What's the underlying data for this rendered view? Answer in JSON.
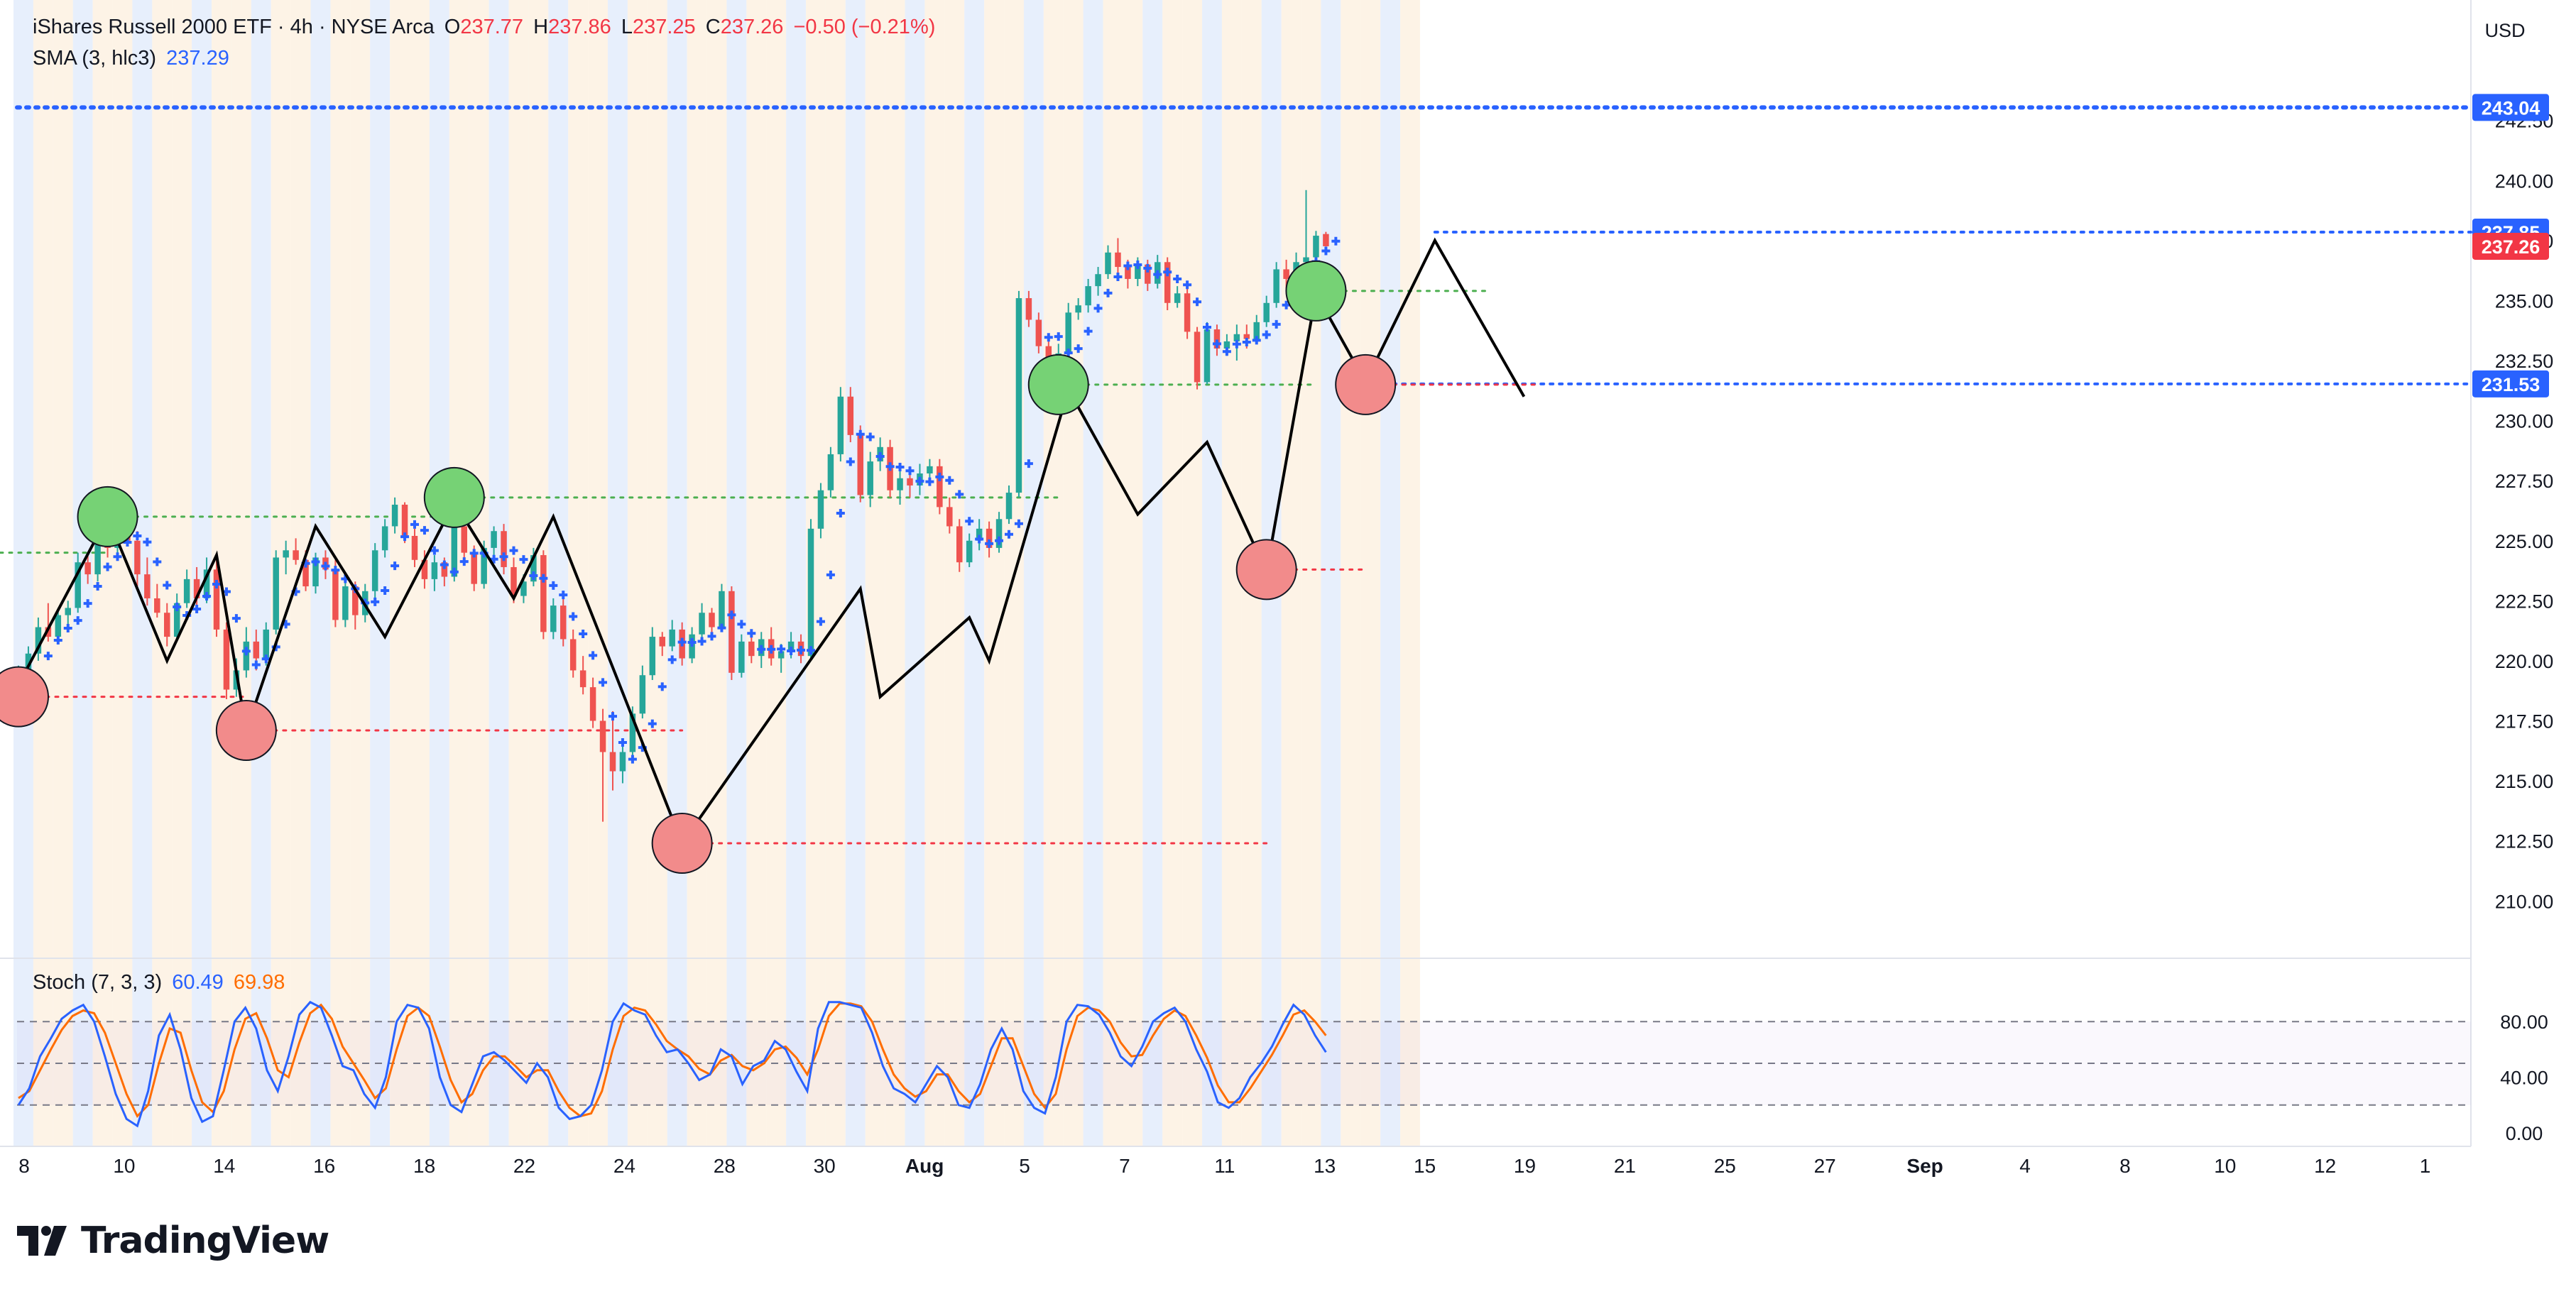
{
  "header": {
    "symbol": "iShares Russell 2000 ETF · 4h · NYSE Arca",
    "o_label": "O",
    "o_value": "237.77",
    "h_label": "H",
    "h_value": "237.86",
    "l_label": "L",
    "l_value": "237.25",
    "c_label": "C",
    "c_value": "237.26",
    "change": "−0.50 (−0.21%)",
    "sma_label": "SMA (3, hlc3)",
    "sma_value": "237.29",
    "stoch_label": "Stoch (7, 3, 3)",
    "stoch_k": "60.49",
    "stoch_d": "69.98"
  },
  "currency": "USD",
  "brand": "TradingView",
  "colors": {
    "up": "#26a69a",
    "down": "#ef5350",
    "sma": "#2962ff",
    "stoch_k": "#2962ff",
    "stoch_d": "#ff6d00",
    "pivot_high": "#76d275",
    "pivot_low": "#f28b8b",
    "badge_blue": "#2962ff",
    "badge_red": "#f23645"
  },
  "chart_data": {
    "type": "candlestick",
    "title": "iShares Russell 2000 ETF · 4h · NYSE Arca",
    "price_axis": {
      "ticks": [
        "210.00",
        "212.50",
        "215.00",
        "217.50",
        "220.00",
        "222.50",
        "225.00",
        "227.50",
        "230.00",
        "232.50",
        "235.00",
        "237.50",
        "240.00",
        "242.50"
      ],
      "ylim": [
        208.5,
        244.5
      ]
    },
    "price_badges": [
      {
        "value": "243.04",
        "color": "blue"
      },
      {
        "value": "237.85",
        "color": "blue"
      },
      {
        "value": "237.26",
        "color": "red"
      },
      {
        "value": "231.53",
        "color": "blue"
      }
    ],
    "x_axis": {
      "labels": [
        "8",
        "10",
        "14",
        "16",
        "18",
        "22",
        "24",
        "28",
        "30",
        "Aug",
        "5",
        "7",
        "11",
        "13",
        "15",
        "19",
        "21",
        "25",
        "27",
        "Sep",
        "4",
        "8",
        "10",
        "12",
        "1"
      ]
    },
    "candles": [
      [
        219.4,
        219.8,
        218.9,
        219.6
      ],
      [
        219.6,
        220.6,
        219.4,
        220.3
      ],
      [
        220.3,
        221.8,
        220.0,
        221.4
      ],
      [
        221.4,
        222.4,
        220.8,
        221.0
      ],
      [
        221.0,
        222.2,
        220.7,
        221.9
      ],
      [
        221.9,
        222.5,
        221.4,
        222.2
      ],
      [
        222.2,
        224.5,
        222.0,
        224.1
      ],
      [
        224.1,
        224.4,
        223.2,
        223.6
      ],
      [
        223.6,
        225.2,
        223.3,
        224.9
      ],
      [
        224.9,
        225.4,
        224.3,
        224.7
      ],
      [
        224.7,
        226.3,
        224.4,
        225.9
      ],
      [
        225.9,
        226.0,
        224.8,
        225.0
      ],
      [
        225.0,
        225.4,
        223.1,
        223.6
      ],
      [
        223.6,
        224.3,
        222.3,
        222.6
      ],
      [
        222.6,
        223.2,
        221.8,
        222.0
      ],
      [
        222.0,
        222.4,
        220.6,
        221.0
      ],
      [
        221.0,
        222.8,
        220.8,
        222.4
      ],
      [
        222.4,
        223.8,
        222.2,
        223.4
      ],
      [
        223.4,
        223.9,
        222.3,
        222.6
      ],
      [
        222.6,
        224.3,
        222.4,
        223.8
      ],
      [
        223.8,
        224.3,
        221.0,
        221.3
      ],
      [
        221.3,
        221.6,
        218.4,
        218.8
      ],
      [
        218.8,
        220.1,
        218.5,
        219.6
      ],
      [
        219.6,
        221.4,
        219.3,
        220.8
      ],
      [
        220.8,
        221.3,
        219.6,
        220.1
      ],
      [
        220.1,
        221.6,
        219.8,
        221.3
      ],
      [
        221.3,
        224.6,
        221.1,
        224.3
      ],
      [
        224.3,
        225.0,
        223.6,
        224.6
      ],
      [
        224.6,
        225.1,
        224.0,
        224.2
      ],
      [
        224.2,
        224.6,
        222.9,
        223.1
      ],
      [
        223.1,
        224.5,
        222.8,
        224.3
      ],
      [
        224.3,
        224.6,
        223.4,
        223.8
      ],
      [
        223.8,
        224.2,
        221.4,
        221.7
      ],
      [
        221.7,
        223.4,
        221.4,
        223.1
      ],
      [
        223.1,
        223.3,
        221.3,
        221.9
      ],
      [
        221.9,
        223.2,
        221.6,
        222.9
      ],
      [
        222.9,
        224.9,
        222.6,
        224.6
      ],
      [
        224.6,
        225.9,
        224.3,
        225.6
      ],
      [
        225.6,
        226.8,
        225.3,
        226.5
      ],
      [
        226.5,
        226.6,
        224.9,
        225.2
      ],
      [
        225.2,
        225.5,
        223.9,
        224.2
      ],
      [
        224.2,
        224.6,
        223.0,
        223.4
      ],
      [
        223.4,
        224.4,
        222.9,
        224.1
      ],
      [
        224.1,
        224.3,
        223.1,
        223.5
      ],
      [
        223.5,
        226.0,
        223.3,
        225.6
      ],
      [
        225.6,
        225.8,
        224.2,
        224.5
      ],
      [
        224.5,
        224.8,
        222.9,
        223.2
      ],
      [
        223.2,
        225.0,
        223.0,
        224.7
      ],
      [
        224.7,
        225.6,
        224.4,
        225.4
      ],
      [
        225.4,
        225.7,
        223.6,
        223.9
      ],
      [
        223.9,
        224.3,
        222.4,
        222.7
      ],
      [
        222.7,
        223.6,
        222.4,
        223.3
      ],
      [
        223.3,
        224.7,
        223.1,
        224.4
      ],
      [
        224.4,
        224.6,
        220.9,
        221.2
      ],
      [
        221.2,
        222.6,
        220.9,
        222.3
      ],
      [
        222.3,
        222.6,
        220.6,
        220.9
      ],
      [
        220.9,
        221.3,
        219.3,
        219.6
      ],
      [
        219.6,
        220.2,
        218.6,
        218.9
      ],
      [
        218.9,
        219.3,
        217.2,
        217.5
      ],
      [
        217.5,
        218.0,
        213.3,
        216.2
      ],
      [
        216.2,
        217.9,
        214.6,
        215.4
      ],
      [
        215.4,
        216.6,
        214.9,
        216.2
      ],
      [
        216.2,
        218.1,
        216.0,
        217.8
      ],
      [
        217.8,
        219.8,
        217.6,
        219.4
      ],
      [
        219.4,
        221.4,
        219.2,
        221.0
      ],
      [
        221.0,
        221.2,
        220.2,
        220.6
      ],
      [
        220.6,
        221.7,
        220.4,
        221.3
      ],
      [
        221.3,
        221.6,
        219.8,
        220.1
      ],
      [
        220.1,
        221.4,
        219.9,
        221.1
      ],
      [
        221.1,
        222.4,
        220.9,
        222.0
      ],
      [
        222.0,
        222.2,
        221.0,
        221.4
      ],
      [
        221.4,
        223.2,
        221.2,
        222.9
      ],
      [
        222.9,
        223.1,
        219.2,
        219.5
      ],
      [
        219.5,
        221.1,
        219.3,
        220.8
      ],
      [
        220.8,
        221.2,
        219.9,
        220.2
      ],
      [
        220.2,
        221.2,
        219.7,
        220.9
      ],
      [
        220.9,
        221.4,
        219.8,
        220.1
      ],
      [
        220.1,
        220.7,
        219.5,
        220.4
      ],
      [
        220.4,
        221.2,
        220.1,
        220.8
      ],
      [
        220.8,
        221.1,
        219.9,
        220.2
      ],
      [
        220.2,
        225.9,
        220.0,
        225.5
      ],
      [
        225.5,
        227.4,
        225.1,
        227.1
      ],
      [
        227.1,
        228.9,
        226.8,
        228.6
      ],
      [
        228.6,
        231.4,
        228.3,
        231.0
      ],
      [
        231.0,
        231.4,
        229.1,
        229.4
      ],
      [
        229.4,
        229.8,
        226.6,
        226.9
      ],
      [
        226.9,
        228.7,
        226.4,
        228.3
      ],
      [
        228.3,
        229.3,
        227.9,
        228.9
      ],
      [
        228.9,
        229.2,
        226.8,
        227.1
      ],
      [
        227.1,
        227.9,
        226.5,
        227.6
      ],
      [
        227.6,
        228.1,
        226.8,
        227.3
      ],
      [
        227.3,
        228.2,
        226.9,
        227.8
      ],
      [
        227.8,
        228.4,
        227.3,
        228.1
      ],
      [
        228.1,
        228.4,
        226.1,
        226.4
      ],
      [
        226.4,
        226.8,
        225.3,
        225.6
      ],
      [
        225.6,
        225.9,
        223.7,
        224.1
      ],
      [
        224.1,
        225.3,
        223.9,
        225.0
      ],
      [
        225.0,
        225.9,
        224.6,
        225.5
      ],
      [
        225.5,
        225.8,
        224.3,
        224.7
      ],
      [
        224.7,
        226.2,
        224.5,
        225.9
      ],
      [
        225.9,
        227.3,
        225.7,
        227.0
      ],
      [
        227.0,
        235.4,
        226.8,
        235.1
      ],
      [
        235.1,
        235.4,
        233.9,
        234.2
      ],
      [
        234.2,
        234.5,
        232.8,
        233.1
      ],
      [
        233.1,
        233.4,
        231.9,
        232.3
      ],
      [
        232.3,
        233.2,
        231.4,
        232.8
      ],
      [
        232.8,
        234.9,
        232.6,
        234.5
      ],
      [
        234.5,
        235.1,
        234.2,
        234.8
      ],
      [
        234.8,
        235.9,
        234.5,
        235.6
      ],
      [
        235.6,
        236.4,
        235.2,
        236.1
      ],
      [
        236.1,
        237.3,
        235.9,
        237.0
      ],
      [
        237.0,
        237.6,
        236.1,
        236.4
      ],
      [
        236.4,
        236.7,
        235.5,
        235.9
      ],
      [
        235.9,
        236.8,
        235.6,
        236.5
      ],
      [
        236.5,
        236.7,
        235.4,
        235.7
      ],
      [
        235.7,
        236.9,
        235.5,
        236.6
      ],
      [
        236.6,
        236.8,
        234.6,
        234.9
      ],
      [
        234.9,
        235.6,
        234.7,
        235.3
      ],
      [
        235.3,
        235.5,
        233.4,
        233.7
      ],
      [
        233.7,
        233.9,
        231.3,
        231.6
      ],
      [
        231.6,
        234.1,
        231.5,
        233.8
      ],
      [
        233.8,
        234.0,
        232.7,
        233.0
      ],
      [
        233.0,
        233.6,
        232.7,
        233.3
      ],
      [
        233.3,
        234.0,
        232.5,
        233.6
      ],
      [
        233.6,
        234.0,
        233.0,
        233.4
      ],
      [
        233.4,
        234.4,
        233.2,
        234.1
      ],
      [
        234.1,
        235.2,
        233.9,
        234.9
      ],
      [
        234.9,
        236.6,
        234.7,
        236.3
      ],
      [
        236.3,
        236.7,
        235.5,
        235.9
      ],
      [
        235.9,
        237.0,
        235.1,
        236.6
      ],
      [
        236.6,
        239.6,
        236.4,
        236.8
      ],
      [
        236.8,
        237.9,
        236.5,
        237.7
      ],
      [
        237.77,
        237.86,
        237.25,
        237.26
      ]
    ],
    "zigzag": [
      [
        0,
        219.0
      ],
      [
        9,
        226.0
      ],
      [
        15,
        220.0
      ],
      [
        20,
        224.4
      ],
      [
        23,
        217.1
      ],
      [
        30,
        225.6
      ],
      [
        37,
        221.0
      ],
      [
        44,
        226.6
      ],
      [
        50,
        222.6
      ],
      [
        54,
        226.0
      ],
      [
        67,
        212.4
      ],
      [
        85,
        223.0
      ],
      [
        87,
        218.5
      ],
      [
        96,
        221.8
      ],
      [
        98,
        220.0
      ],
      [
        106,
        231.3
      ],
      [
        113,
        226.1
      ],
      [
        120,
        229.1
      ],
      [
        126,
        223.7
      ],
      [
        131,
        235.3
      ],
      [
        136,
        231.6
      ],
      [
        143,
        237.5
      ],
      [
        152,
        231.0
      ]
    ],
    "pivots": [
      {
        "i": 9,
        "price": 226.0,
        "type": "high"
      },
      {
        "i": 44,
        "price": 226.8,
        "type": "high"
      },
      {
        "i": 105,
        "price": 231.5,
        "type": "high"
      },
      {
        "i": 131,
        "price": 235.4,
        "type": "high"
      },
      {
        "i": 0,
        "price": 218.5,
        "type": "low"
      },
      {
        "i": 23,
        "price": 217.1,
        "type": "low"
      },
      {
        "i": 67,
        "price": 212.4,
        "type": "low"
      },
      {
        "i": 126,
        "price": 223.8,
        "type": "low"
      },
      {
        "i": 136,
        "price": 231.5,
        "type": "low"
      }
    ],
    "stoch": {
      "axis_ticks": [
        "80.00",
        "40.00",
        "0.00"
      ],
      "levels": [
        80,
        50,
        20
      ],
      "k_name": "%K",
      "d_name": "%D",
      "k": [
        20,
        32,
        55,
        68,
        82,
        88,
        92,
        80,
        55,
        28,
        10,
        5,
        30,
        70,
        85,
        60,
        25,
        8,
        12,
        45,
        80,
        90,
        75,
        45,
        30,
        55,
        85,
        94,
        90,
        70,
        48,
        45,
        28,
        18,
        40,
        80,
        92,
        90,
        75,
        40,
        20,
        15,
        35,
        55,
        58,
        52,
        44,
        36,
        50,
        40,
        18,
        10,
        12,
        20,
        45,
        80,
        93,
        88,
        85,
        70,
        58,
        60,
        50,
        38,
        42,
        60,
        55,
        35,
        48,
        52,
        66,
        60,
        44,
        30,
        75,
        94,
        94,
        92,
        90,
        72,
        48,
        32,
        28,
        22,
        35,
        48,
        40,
        20,
        18,
        35,
        60,
        75,
        60,
        30,
        18,
        14,
        40,
        80,
        92,
        91,
        85,
        72,
        55,
        48,
        62,
        80,
        86,
        90,
        80,
        60,
        44,
        22,
        18,
        25,
        40,
        50,
        62,
        78,
        92,
        85,
        70,
        58
      ],
      "d": [
        25,
        30,
        45,
        60,
        74,
        84,
        88,
        86,
        72,
        50,
        28,
        12,
        20,
        50,
        75,
        72,
        45,
        22,
        15,
        30,
        60,
        82,
        86,
        68,
        45,
        40,
        65,
        86,
        92,
        82,
        62,
        50,
        38,
        25,
        32,
        60,
        84,
        90,
        84,
        62,
        38,
        22,
        28,
        45,
        55,
        55,
        48,
        40,
        45,
        45,
        30,
        18,
        12,
        14,
        30,
        60,
        84,
        90,
        88,
        78,
        66,
        60,
        55,
        46,
        42,
        52,
        56,
        48,
        45,
        50,
        60,
        62,
        54,
        42,
        60,
        84,
        93,
        93,
        91,
        80,
        60,
        42,
        32,
        26,
        30,
        42,
        42,
        30,
        22,
        28,
        48,
        68,
        68,
        48,
        28,
        18,
        28,
        60,
        84,
        90,
        88,
        80,
        65,
        55,
        56,
        70,
        82,
        88,
        84,
        70,
        54,
        34,
        22,
        22,
        32,
        44,
        56,
        70,
        85,
        88,
        80,
        70
      ]
    }
  }
}
